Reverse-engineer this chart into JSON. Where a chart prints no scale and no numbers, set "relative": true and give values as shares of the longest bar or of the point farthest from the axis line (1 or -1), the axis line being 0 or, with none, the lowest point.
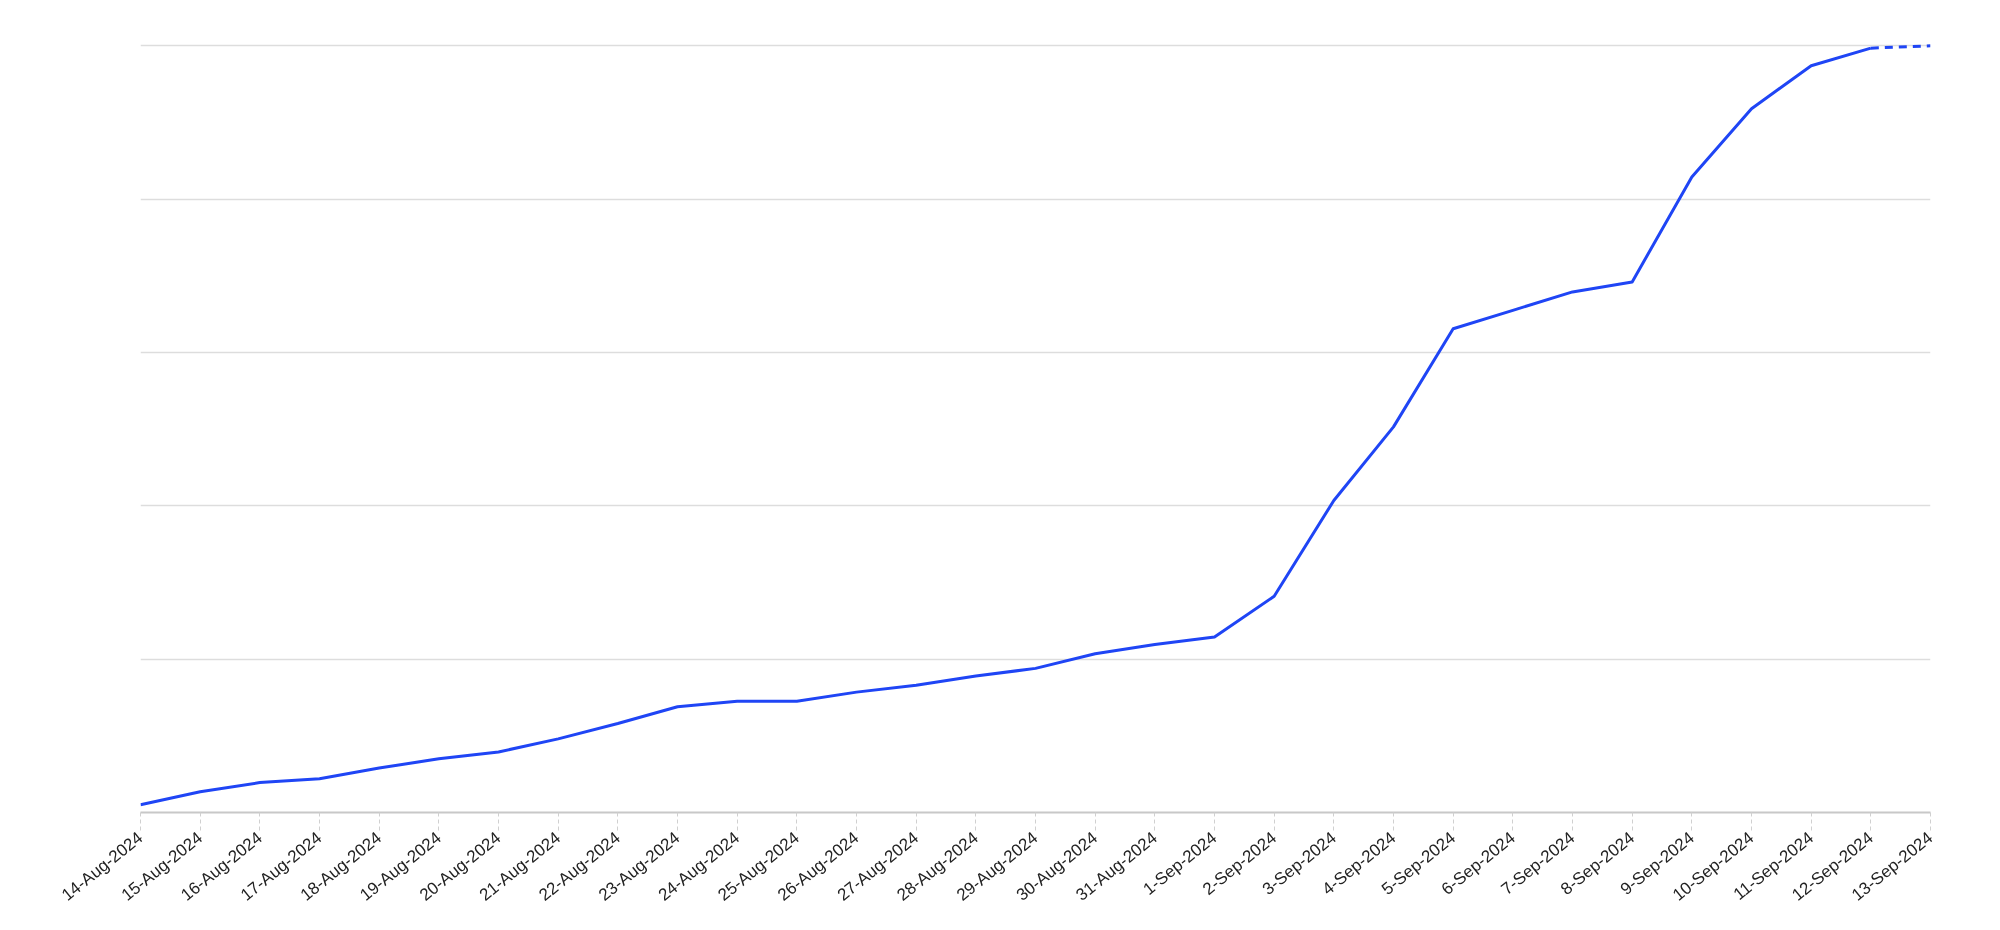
{
  "chart_data": {
    "type": "line",
    "relative": true,
    "grid": "y",
    "x": [
      "2024-08-14",
      "2024-08-15",
      "2024-08-16",
      "2024-08-17",
      "2024-08-18",
      "2024-08-19",
      "2024-08-20",
      "2024-08-21",
      "2024-08-22",
      "2024-08-23",
      "2024-08-24",
      "2024-08-25",
      "2024-08-26",
      "2024-08-27",
      "2024-08-28",
      "2024-08-29",
      "2024-08-30",
      "2024-08-31",
      "2024-09-01",
      "2024-09-02",
      "2024-09-03",
      "2024-09-04",
      "2024-09-05",
      "2024-09-06",
      "2024-09-07",
      "2024-09-08",
      "2024-09-09",
      "2024-09-10",
      "2024-09-11",
      "2024-09-12"
    ],
    "xlim": [
      "2024-08-14",
      "2024-09-13"
    ],
    "xticks": [
      {
        "value": "2024-08-14",
        "label": "14-Aug-2024"
      },
      {
        "value": "2024-08-15",
        "label": "15-Aug-2024"
      },
      {
        "value": "2024-08-16",
        "label": "16-Aug-2024"
      },
      {
        "value": "2024-08-17",
        "label": "17-Aug-2024"
      },
      {
        "value": "2024-08-18",
        "label": "18-Aug-2024"
      },
      {
        "value": "2024-08-19",
        "label": "19-Aug-2024"
      },
      {
        "value": "2024-08-20",
        "label": "20-Aug-2024"
      },
      {
        "value": "2024-08-21",
        "label": "21-Aug-2024"
      },
      {
        "value": "2024-08-22",
        "label": "22-Aug-2024"
      },
      {
        "value": "2024-08-23",
        "label": "23-Aug-2024"
      },
      {
        "value": "2024-08-24",
        "label": "24-Aug-2024"
      },
      {
        "value": "2024-08-25",
        "label": "25-Aug-2024"
      },
      {
        "value": "2024-08-26",
        "label": "26-Aug-2024"
      },
      {
        "value": "2024-08-27",
        "label": "27-Aug-2024"
      },
      {
        "value": "2024-08-28",
        "label": "28-Aug-2024"
      },
      {
        "value": "2024-08-29",
        "label": "29-Aug-2024"
      },
      {
        "value": "2024-08-30",
        "label": "30-Aug-2024"
      },
      {
        "value": "2024-08-31",
        "label": "31-Aug-2024"
      },
      {
        "value": "2024-09-01",
        "label": "1-Sep-2024"
      },
      {
        "value": "2024-09-02",
        "label": "2-Sep-2024"
      },
      {
        "value": "2024-09-03",
        "label": "3-Sep-2024"
      },
      {
        "value": "2024-09-04",
        "label": "4-Sep-2024"
      },
      {
        "value": "2024-09-05",
        "label": "5-Sep-2024"
      },
      {
        "value": "2024-09-06",
        "label": "6-Sep-2024"
      },
      {
        "value": "2024-09-07",
        "label": "7-Sep-2024"
      },
      {
        "value": "2024-09-08",
        "label": "8-Sep-2024"
      },
      {
        "value": "2024-09-09",
        "label": "9-Sep-2024"
      },
      {
        "value": "2024-09-10",
        "label": "10-Sep-2024"
      },
      {
        "value": "2024-09-11",
        "label": "11-Sep-2024"
      },
      {
        "value": "2024-09-12",
        "label": "12-Sep-2024"
      },
      {
        "value": "2024-09-13",
        "label": "13-Sep-2024"
      }
    ],
    "series": [
      {
        "color": "#1f45f5",
        "line_style": "solid",
        "values": [
          0.01,
          0.027,
          0.039,
          0.044,
          0.058,
          0.07,
          0.079,
          0.096,
          0.116,
          0.138,
          0.145,
          0.145,
          0.157,
          0.166,
          0.178,
          0.188,
          0.207,
          0.219,
          0.229,
          0.282,
          0.407,
          0.503,
          0.631,
          0.655,
          0.679,
          0.692,
          0.829,
          0.918,
          0.974,
          0.997
        ]
      },
      {
        "color": "#1f45f5",
        "line_style": "dashed",
        "x": [
          "2024-09-12",
          "2024-09-13"
        ],
        "values": [
          0.997,
          1.0
        ]
      }
    ]
  }
}
